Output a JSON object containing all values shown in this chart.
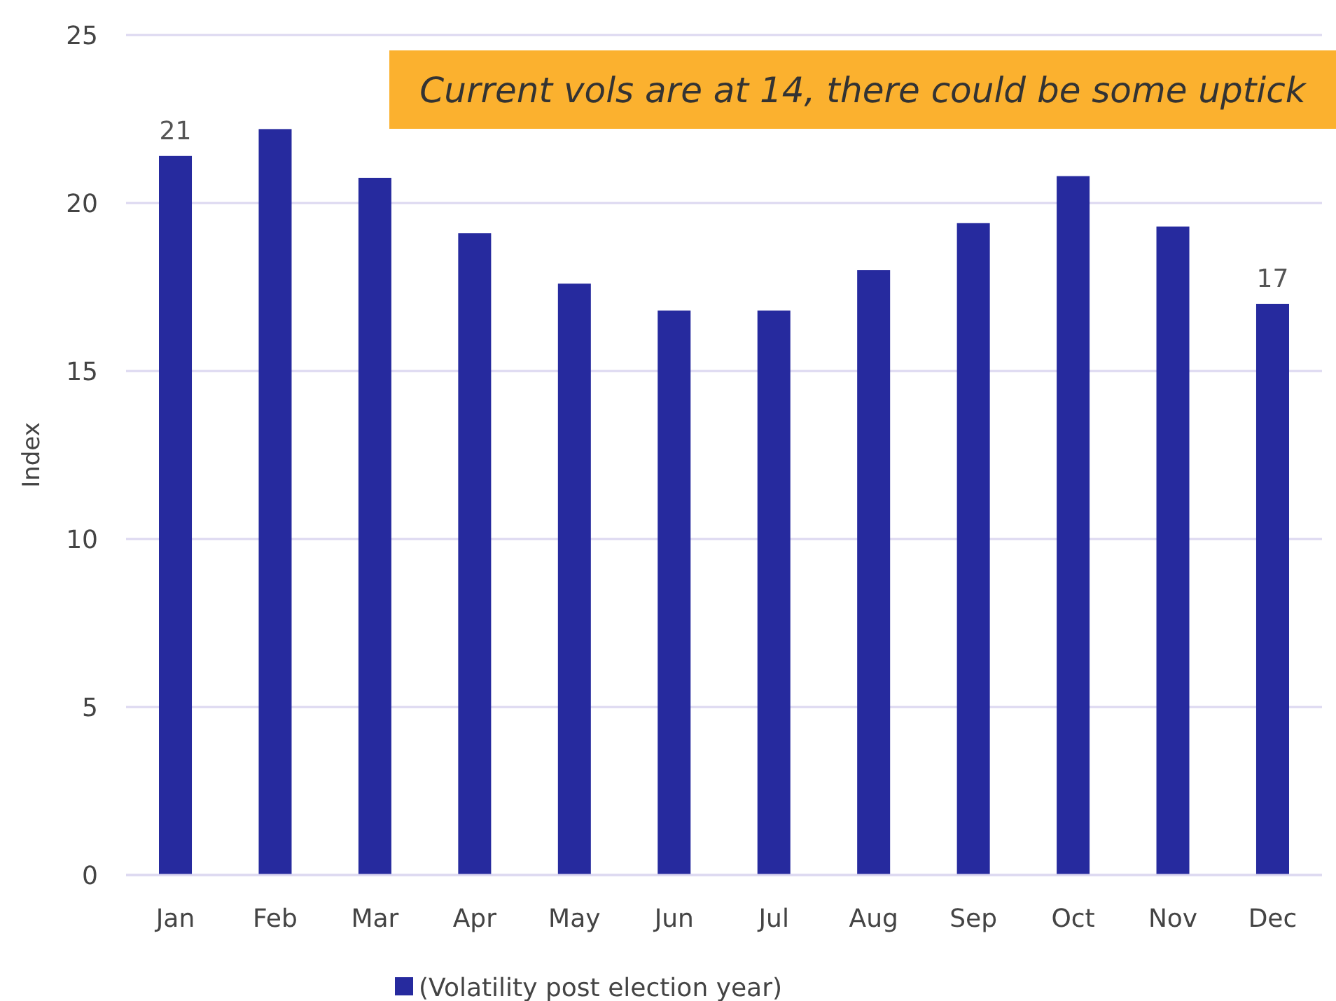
{
  "chart_data": {
    "type": "bar",
    "categories": [
      "Jan",
      "Feb",
      "Mar",
      "Apr",
      "May",
      "Jun",
      "Jul",
      "Aug",
      "Sep",
      "Oct",
      "Nov",
      "Dec"
    ],
    "series": [
      {
        "name": "(Volatility post election year)",
        "color": "#262a9e",
        "values": [
          21.4,
          22.2,
          20.75,
          19.1,
          17.6,
          16.8,
          16.8,
          18.0,
          19.4,
          20.8,
          19.3,
          17.0
        ],
        "value_labels": [
          "21",
          null,
          null,
          null,
          null,
          null,
          null,
          null,
          null,
          null,
          null,
          "17"
        ]
      }
    ],
    "ylabel": "Index",
    "ylim": [
      0,
      25
    ],
    "yticks": [
      0,
      5,
      10,
      15,
      20,
      25
    ],
    "grid": "y",
    "legend": "bottom",
    "annotations": [
      "Current vols are at 14, there could be some uptick"
    ]
  }
}
